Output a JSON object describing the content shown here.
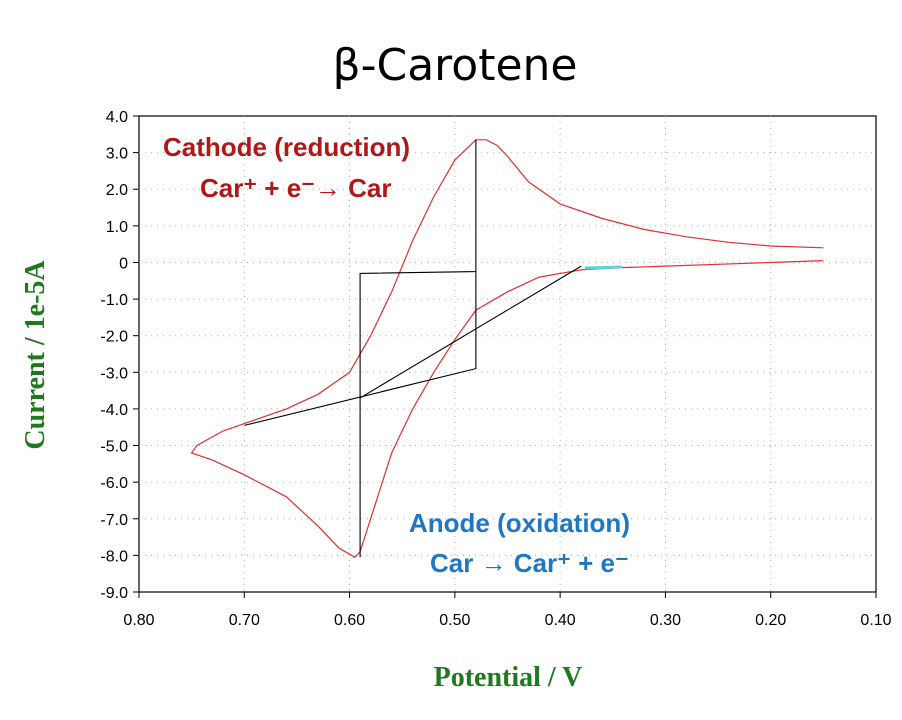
{
  "chart_data": {
    "type": "line",
    "title": "β-Carotene",
    "xlabel": "Potential / V",
    "ylabel": "Current / 1e-5A",
    "xlim": [
      0.8,
      0.1
    ],
    "ylim": [
      -9.0,
      4.0
    ],
    "x_ticks": [
      "0.80",
      "0.70",
      "0.60",
      "0.50",
      "0.40",
      "0.30",
      "0.20",
      "0.10"
    ],
    "y_ticks": [
      "4.0",
      "3.0",
      "2.0",
      "1.0",
      "0",
      "-1.0",
      "-2.0",
      "-3.0",
      "-4.0",
      "-5.0",
      "-6.0",
      "-7.0",
      "-8.0",
      "-9.0"
    ],
    "grid": true,
    "colors": {
      "cv_curve": "#e03030",
      "construction_lines": "#000000",
      "title": "#000000",
      "axis_label": "#1f7a1f",
      "cathode_text": "#b01818",
      "anode_text": "#1f77c4"
    },
    "series": [
      {
        "values": [
          [
            0.15,
            0.05
          ],
          [
            0.2,
            0.0
          ],
          [
            0.25,
            -0.05
          ],
          [
            0.3,
            -0.1
          ],
          [
            0.35,
            -0.15
          ],
          [
            0.38,
            -0.2
          ],
          [
            0.42,
            -0.4
          ],
          [
            0.45,
            -0.8
          ],
          [
            0.48,
            -1.3
          ],
          [
            0.5,
            -2.1
          ],
          [
            0.52,
            -3.0
          ],
          [
            0.54,
            -4.0
          ],
          [
            0.56,
            -5.2
          ],
          [
            0.58,
            -7.0
          ],
          [
            0.59,
            -7.9
          ],
          [
            0.595,
            -8.05
          ],
          [
            0.61,
            -7.8
          ],
          [
            0.63,
            -7.2
          ],
          [
            0.66,
            -6.4
          ],
          [
            0.7,
            -5.8
          ],
          [
            0.73,
            -5.4
          ],
          [
            0.75,
            -5.2
          ],
          [
            0.745,
            -5.0
          ],
          [
            0.72,
            -4.6
          ],
          [
            0.69,
            -4.3
          ],
          [
            0.66,
            -4.0
          ],
          [
            0.63,
            -3.6
          ],
          [
            0.6,
            -3.0
          ],
          [
            0.58,
            -2.0
          ],
          [
            0.56,
            -0.8
          ],
          [
            0.54,
            0.6
          ],
          [
            0.52,
            1.8
          ],
          [
            0.5,
            2.8
          ],
          [
            0.48,
            3.35
          ],
          [
            0.47,
            3.35
          ],
          [
            0.46,
            3.2
          ],
          [
            0.45,
            2.9
          ],
          [
            0.43,
            2.2
          ],
          [
            0.4,
            1.6
          ],
          [
            0.36,
            1.2
          ],
          [
            0.32,
            0.9
          ],
          [
            0.28,
            0.7
          ],
          [
            0.24,
            0.55
          ],
          [
            0.2,
            0.45
          ],
          [
            0.15,
            0.4
          ]
        ]
      },
      {
        "values": [
          [
            0.7,
            -4.45
          ],
          [
            0.48,
            -2.9
          ],
          [
            0.48,
            3.35
          ],
          [
            0.48,
            -0.25
          ],
          [
            0.59,
            -0.3
          ],
          [
            0.59,
            -8.05
          ],
          [
            0.59,
            -3.7
          ],
          [
            0.38,
            -0.1
          ]
        ]
      }
    ],
    "annotations": [
      {
        "text": "Cathode (reduction)"
      },
      {
        "text": "Car⁺ + e⁻→  Car"
      },
      {
        "text": "Anode (oxidation)"
      },
      {
        "text": "Car →  Car⁺ + e⁻"
      }
    ]
  }
}
